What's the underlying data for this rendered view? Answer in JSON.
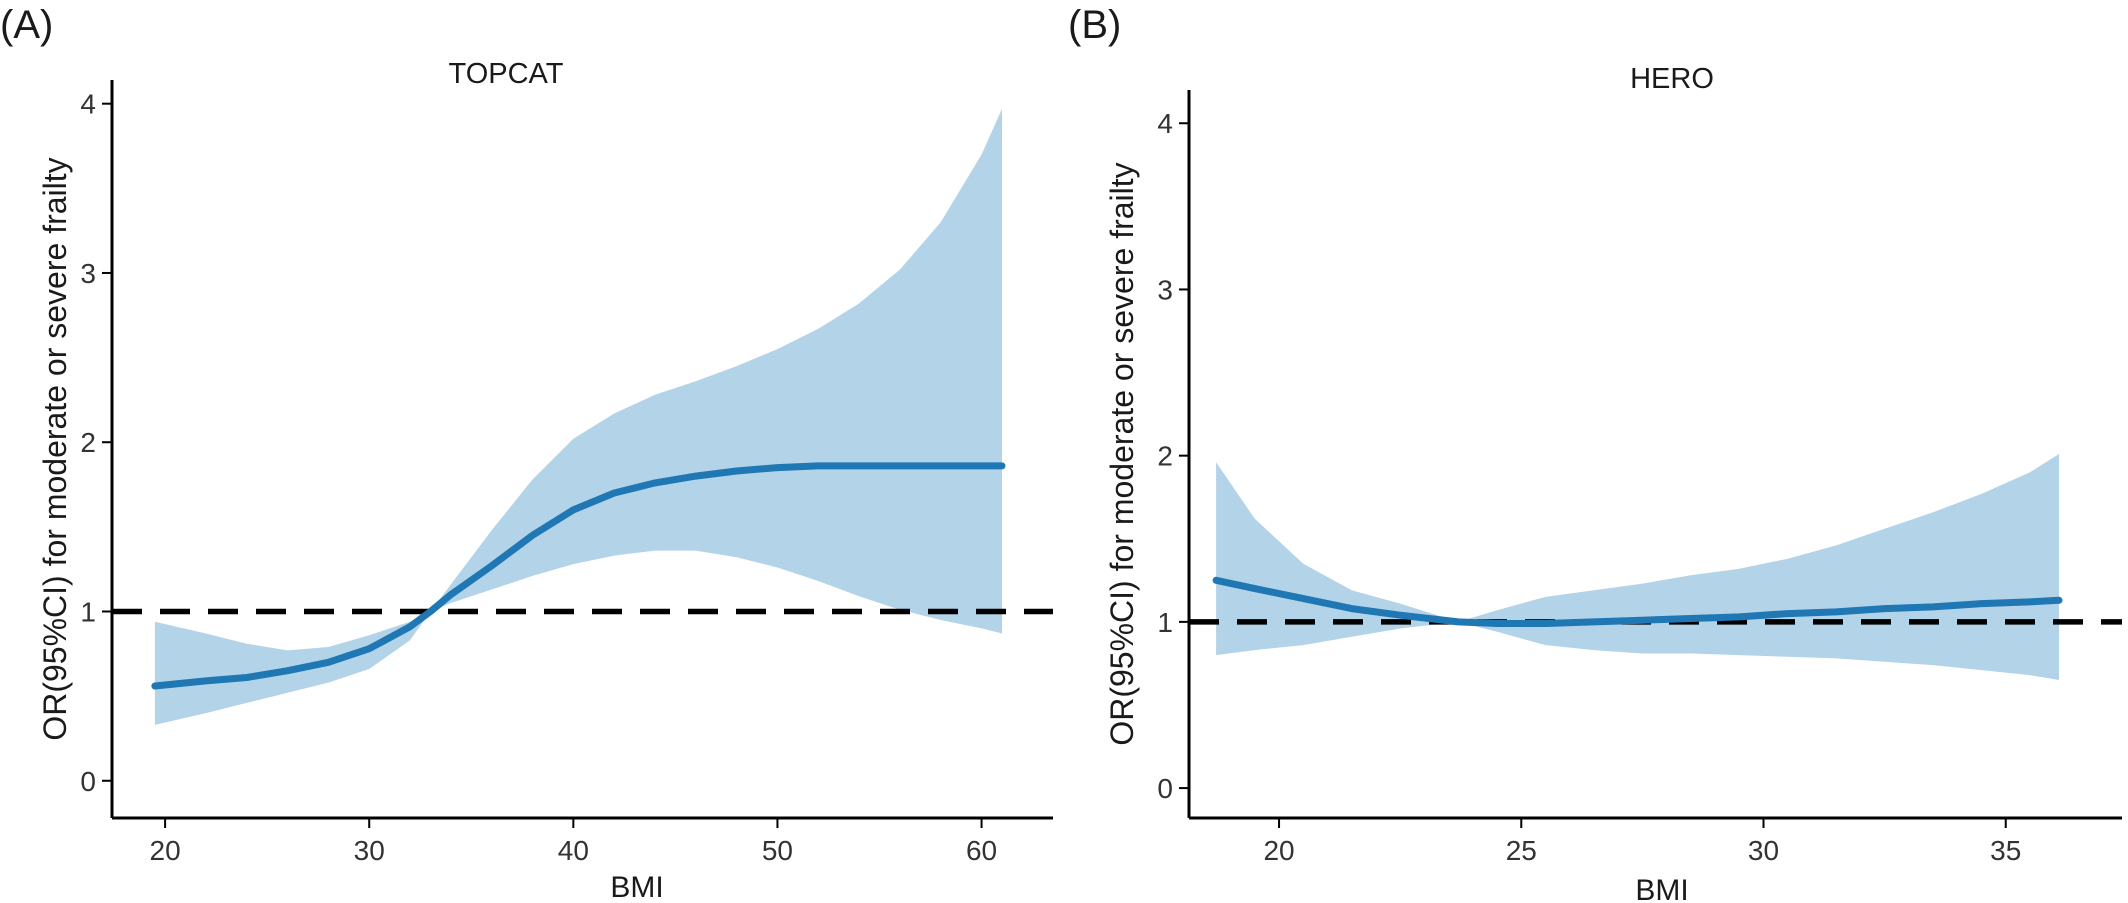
{
  "colors": {
    "line": "#1f77b4",
    "band": "#b3d3e8",
    "reference": "#000000",
    "axis": "#000000",
    "text": "#1a1a1a"
  },
  "chart_data": [
    {
      "type": "area",
      "panel_label": "(A)",
      "title": "TOPCAT",
      "xlabel": "BMI",
      "ylabel": "OR(95%CI) for moderate or severe frailty",
      "xlim": [
        17.3,
        63.5
      ],
      "ylim": [
        -0.22,
        4.14
      ],
      "xticks": [
        20,
        30,
        40,
        50,
        60
      ],
      "yticks": [
        0,
        1,
        2,
        3,
        4
      ],
      "reference_y": 1,
      "series": [
        {
          "x": [
            19.5,
            22,
            24,
            26,
            28,
            30,
            32,
            33,
            34,
            36,
            38,
            40,
            42,
            44,
            46,
            48,
            50,
            52,
            54,
            56,
            58,
            60,
            61
          ],
          "y": [
            0.56,
            0.59,
            0.61,
            0.65,
            0.7,
            0.78,
            0.91,
            1.0,
            1.1,
            1.27,
            1.45,
            1.6,
            1.7,
            1.76,
            1.8,
            1.83,
            1.85,
            1.86,
            1.86,
            1.86,
            1.86,
            1.86,
            1.86
          ],
          "lower": [
            0.33,
            0.4,
            0.46,
            0.52,
            0.58,
            0.66,
            0.83,
            1.0,
            1.05,
            1.13,
            1.21,
            1.28,
            1.33,
            1.36,
            1.36,
            1.32,
            1.26,
            1.18,
            1.09,
            1.01,
            0.95,
            0.9,
            0.87
          ],
          "upper": [
            0.94,
            0.87,
            0.81,
            0.77,
            0.79,
            0.86,
            0.94,
            1.0,
            1.16,
            1.48,
            1.78,
            2.02,
            2.17,
            2.28,
            2.36,
            2.45,
            2.55,
            2.67,
            2.82,
            3.02,
            3.3,
            3.7,
            3.97
          ]
        }
      ]
    },
    {
      "type": "area",
      "panel_label": "(B)",
      "title": "HERO",
      "xlabel": "BMI",
      "ylabel": "OR(95%CI) for moderate or severe frailty",
      "xlim": [
        18.1,
        37.4
      ],
      "ylim": [
        -0.18,
        4.2
      ],
      "xticks": [
        20,
        25,
        30,
        35
      ],
      "yticks": [
        0,
        1,
        2,
        3,
        4
      ],
      "reference_y": 1,
      "series": [
        {
          "x": [
            18.7,
            19.5,
            20.5,
            21.5,
            22.5,
            23.7,
            24.5,
            25.5,
            26.5,
            27.5,
            28.5,
            29.5,
            30.5,
            31.5,
            32.5,
            33.5,
            34.5,
            35.5,
            36.1
          ],
          "y": [
            1.25,
            1.2,
            1.14,
            1.08,
            1.04,
            1.0,
            0.99,
            0.99,
            1.0,
            1.01,
            1.02,
            1.03,
            1.05,
            1.06,
            1.08,
            1.09,
            1.11,
            1.12,
            1.13
          ],
          "lower": [
            0.8,
            0.83,
            0.86,
            0.91,
            0.96,
            1.0,
            0.94,
            0.86,
            0.83,
            0.81,
            0.81,
            0.8,
            0.79,
            0.78,
            0.76,
            0.74,
            0.71,
            0.68,
            0.65
          ],
          "upper": [
            1.96,
            1.62,
            1.35,
            1.19,
            1.11,
            1.0,
            1.07,
            1.15,
            1.19,
            1.23,
            1.28,
            1.32,
            1.38,
            1.46,
            1.56,
            1.66,
            1.77,
            1.9,
            2.01
          ]
        }
      ]
    }
  ]
}
